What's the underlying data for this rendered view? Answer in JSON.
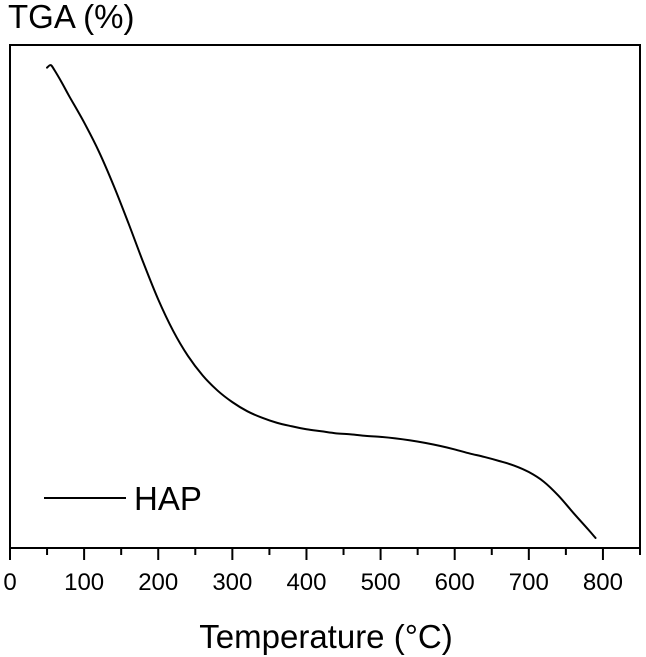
{
  "chart_data": {
    "type": "line",
    "title": "",
    "ylabel": "TGA (%)",
    "xlabel": "Temperature (°C)",
    "xlim": [
      0,
      850
    ],
    "ylim": [
      0,
      1
    ],
    "x_ticks": [
      0,
      100,
      200,
      300,
      400,
      500,
      600,
      700,
      800
    ],
    "y_ticks": [],
    "y_tick_labels_shown": false,
    "grid": false,
    "legend_position": "bottom-left",
    "line_color": "#000000",
    "series": [
      {
        "name": "HAP",
        "x": [
          50,
          55,
          60,
          70,
          80,
          100,
          120,
          140,
          160,
          180,
          200,
          220,
          240,
          260,
          280,
          300,
          320,
          340,
          360,
          380,
          400,
          420,
          440,
          460,
          480,
          500,
          520,
          540,
          560,
          580,
          600,
          620,
          640,
          660,
          680,
          700,
          720,
          740,
          760,
          780,
          790
        ],
        "y": [
          0.955,
          0.96,
          0.95,
          0.925,
          0.898,
          0.846,
          0.788,
          0.72,
          0.645,
          0.567,
          0.494,
          0.432,
          0.382,
          0.343,
          0.313,
          0.29,
          0.272,
          0.259,
          0.249,
          0.242,
          0.236,
          0.232,
          0.228,
          0.226,
          0.223,
          0.221,
          0.218,
          0.214,
          0.209,
          0.203,
          0.196,
          0.188,
          0.181,
          0.173,
          0.164,
          0.151,
          0.132,
          0.104,
          0.07,
          0.037,
          0.02
        ]
      }
    ]
  }
}
